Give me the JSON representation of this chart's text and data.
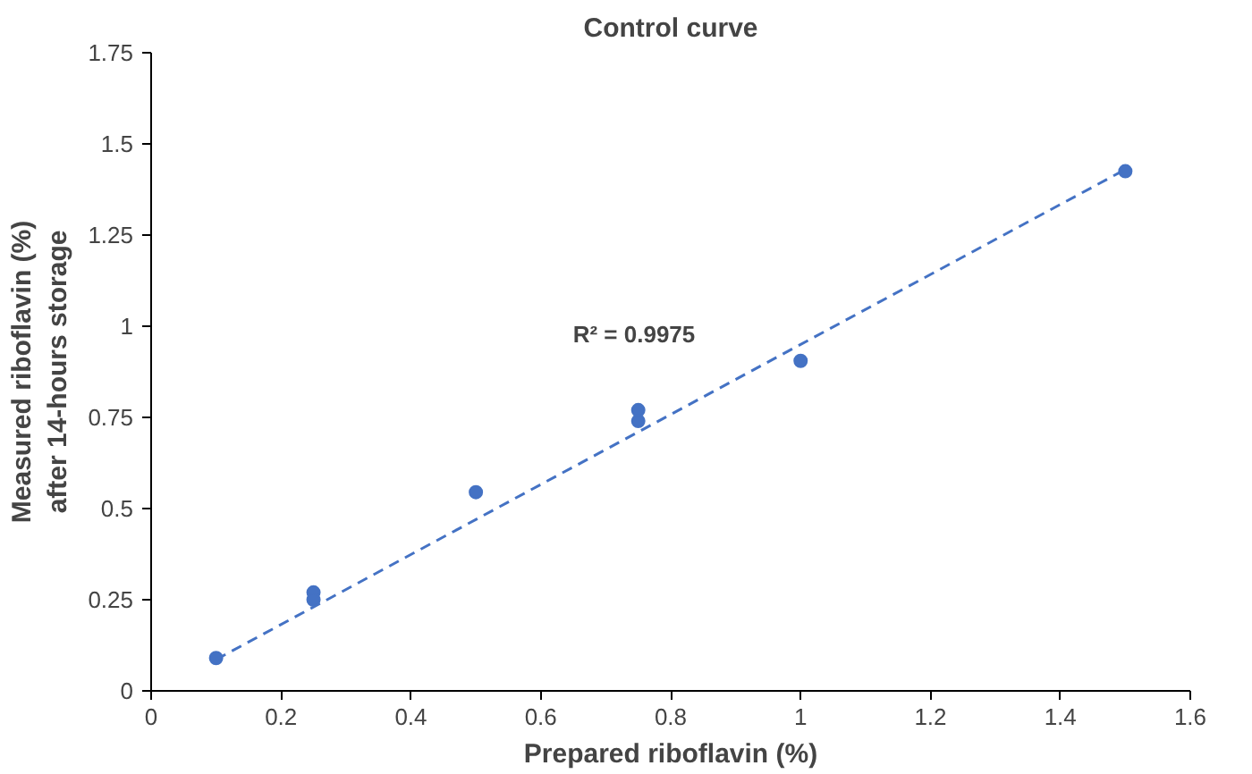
{
  "chart_data": {
    "type": "scatter",
    "title": "Control curve",
    "xlabel": "Prepared riboflavin (%)",
    "ylabel": "Measured riboflavin (%)\nafter 14-hours storage",
    "series": [
      {
        "color": "#4472c4",
        "x": [
          0.1,
          0.25,
          0.25,
          0.5,
          0.75,
          0.75,
          1.0,
          1.5
        ],
        "values": [
          0.09,
          0.27,
          0.25,
          0.545,
          0.77,
          0.74,
          0.905,
          1.425
        ],
        "marker": "circle"
      },
      {
        "type": "line",
        "color": "#4472c4",
        "x": [
          0.1,
          1.5
        ],
        "values": [
          0.086,
          1.43
        ],
        "line_style": "dashed",
        "marker": "none"
      }
    ],
    "annotations": [
      "R² = 0.9975"
    ],
    "xlim": [
      0,
      1.6
    ],
    "xticks": [
      0,
      0.2,
      0.4,
      0.6,
      0.8,
      1,
      1.2,
      1.4,
      1.6
    ],
    "ylim": [
      0,
      1.75
    ],
    "yticks": [
      0,
      0.25,
      0.5,
      0.75,
      1,
      1.25,
      1.5,
      1.75
    ],
    "grid": false
  }
}
